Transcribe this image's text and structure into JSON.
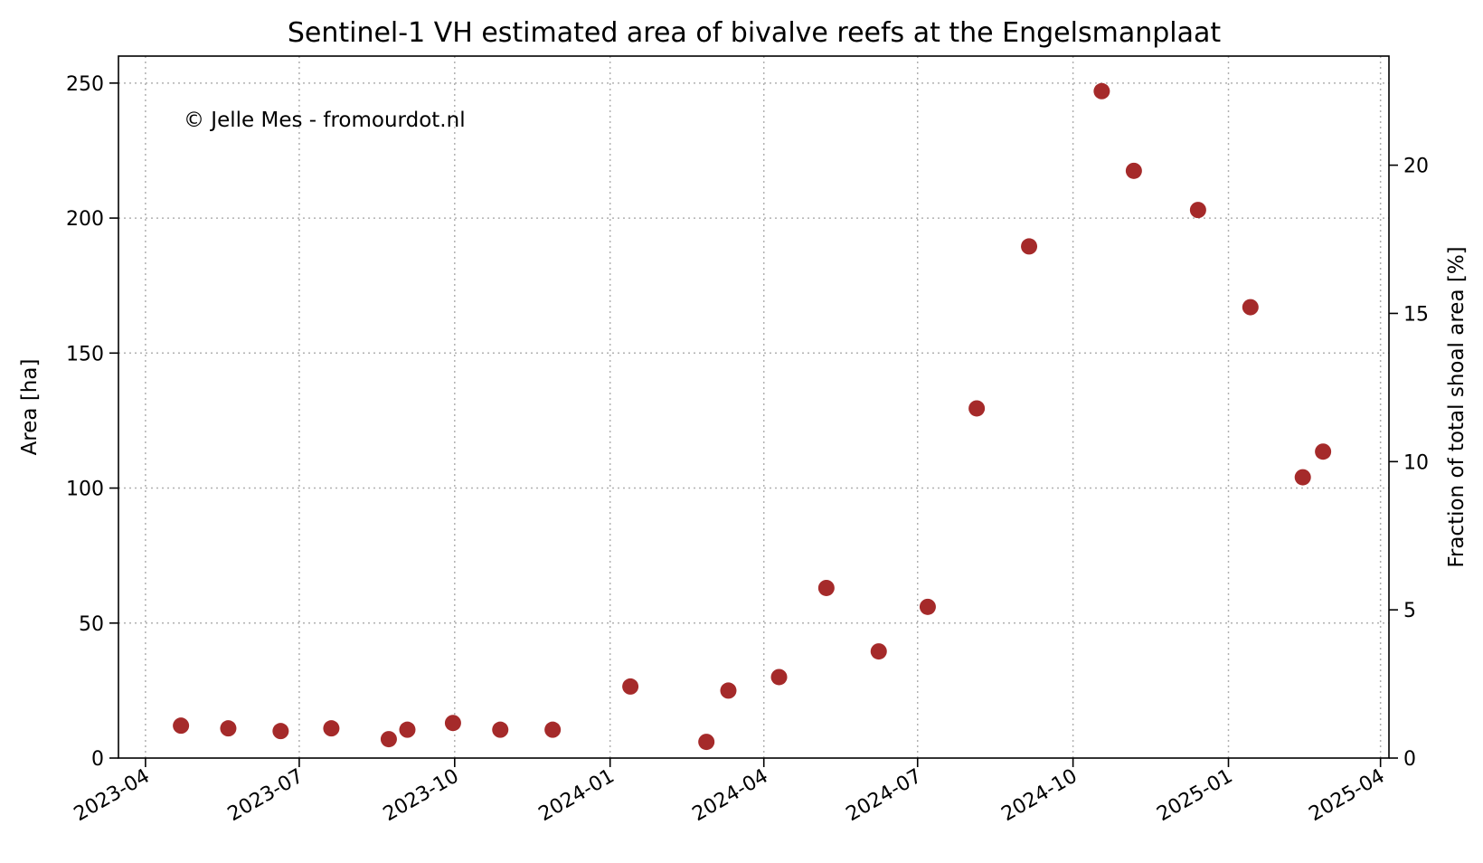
{
  "chart_data": {
    "type": "scatter",
    "title": "Sentinel-1 VH estimated area of bivalve reefs at the Engelsmanplaat",
    "annotation": "© Jelle Mes - fromourdot.nl",
    "xlabel": "",
    "ylabel": "Area [ha]",
    "y2label": "Fraction of total shoal area [%]",
    "xlim": [
      "2023-03-16",
      "2025-04-06"
    ],
    "ylim": [
      0,
      260
    ],
    "y2lim": [
      0,
      23.68
    ],
    "x_ticks": [
      "2023-04",
      "2023-07",
      "2023-10",
      "2024-01",
      "2024-04",
      "2024-07",
      "2024-10",
      "2025-01",
      "2025-04"
    ],
    "y_ticks": [
      0,
      50,
      100,
      150,
      200,
      250
    ],
    "y2_ticks": [
      0,
      5,
      10,
      15,
      20
    ],
    "grid": true,
    "marker_color": "#a52a2a",
    "series": [
      {
        "points": [
          {
            "x": "2023-04-22",
            "y": 12
          },
          {
            "x": "2023-05-20",
            "y": 11
          },
          {
            "x": "2023-06-20",
            "y": 10
          },
          {
            "x": "2023-07-20",
            "y": 11
          },
          {
            "x": "2023-08-23",
            "y": 7
          },
          {
            "x": "2023-09-03",
            "y": 10.5
          },
          {
            "x": "2023-09-30",
            "y": 13
          },
          {
            "x": "2023-10-28",
            "y": 10.5
          },
          {
            "x": "2023-11-28",
            "y": 10.5
          },
          {
            "x": "2024-01-13",
            "y": 26.5
          },
          {
            "x": "2024-02-27",
            "y": 6
          },
          {
            "x": "2024-03-11",
            "y": 25
          },
          {
            "x": "2024-04-10",
            "y": 30
          },
          {
            "x": "2024-05-08",
            "y": 63
          },
          {
            "x": "2024-06-08",
            "y": 39.5
          },
          {
            "x": "2024-07-07",
            "y": 56
          },
          {
            "x": "2024-08-05",
            "y": 129.5
          },
          {
            "x": "2024-09-05",
            "y": 189.5
          },
          {
            "x": "2024-10-18",
            "y": 247
          },
          {
            "x": "2024-11-06",
            "y": 217.5
          },
          {
            "x": "2024-12-14",
            "y": 203
          },
          {
            "x": "2025-01-14",
            "y": 167
          },
          {
            "x": "2025-02-14",
            "y": 104
          },
          {
            "x": "2025-02-26",
            "y": 113.5
          }
        ]
      }
    ]
  }
}
